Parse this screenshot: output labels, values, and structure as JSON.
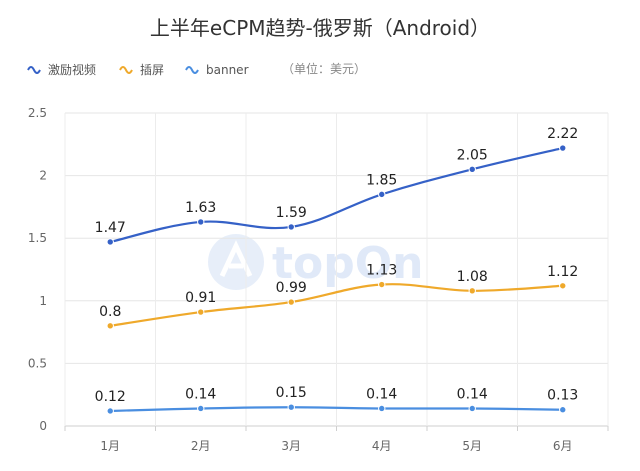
{
  "chart_data": {
    "type": "line",
    "title": "上半年eCPM趋势-俄罗斯（Android）",
    "unit_note": "（单位：美元）",
    "categories": [
      "1月",
      "2月",
      "3月",
      "4月",
      "5月",
      "6月"
    ],
    "yticks": [
      "0",
      "0.5",
      "1",
      "1.5",
      "2",
      "2.5"
    ],
    "ylim": [
      0,
      2.5
    ],
    "grid": true,
    "legend_position": "top-left",
    "series": [
      {
        "name": "激励视频",
        "color": "#3561c7",
        "values": [
          1.47,
          1.63,
          1.59,
          1.85,
          2.05,
          2.22
        ],
        "labels": [
          "1.47",
          "1.63",
          "1.59",
          "1.85",
          "2.05",
          "2.22"
        ]
      },
      {
        "name": "插屏",
        "color": "#efa92b",
        "values": [
          0.8,
          0.91,
          0.99,
          1.13,
          1.08,
          1.12
        ],
        "labels": [
          "0.8",
          "0.91",
          "0.99",
          "1.13",
          "1.08",
          "1.12"
        ]
      },
      {
        "name": "banner",
        "color": "#4a8ee0",
        "values": [
          0.12,
          0.14,
          0.15,
          0.14,
          0.14,
          0.13
        ],
        "labels": [
          "0.12",
          "0.14",
          "0.15",
          "0.14",
          "0.14",
          "0.13"
        ]
      }
    ]
  },
  "watermark": {
    "text": "topOn"
  }
}
